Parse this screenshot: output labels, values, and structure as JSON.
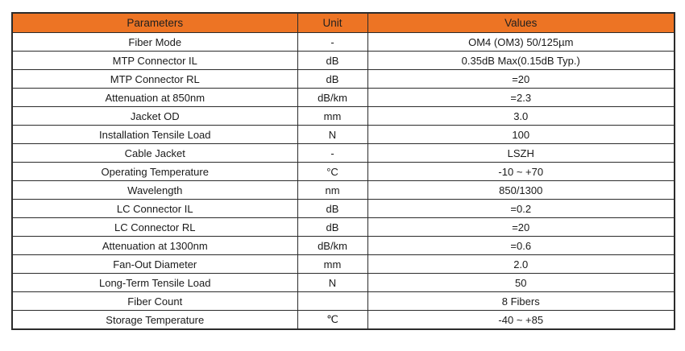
{
  "table": {
    "colors": {
      "header_bg": "#ed7424",
      "header_text": "#1f1f1f",
      "border": "#2b2b2b",
      "row_bg": "#ffffff"
    },
    "headers": [
      {
        "label": "Parameters"
      },
      {
        "label": "Unit"
      },
      {
        "label": "Values"
      }
    ],
    "rows": [
      {
        "parameter": "Fiber Mode",
        "unit": "-",
        "value": "OM4 (OM3) 50/125µm"
      },
      {
        "parameter": "MTP Connector IL",
        "unit": "dB",
        "value": "0.35dB Max(0.15dB Typ.)"
      },
      {
        "parameter": "MTP Connector RL",
        "unit": "dB",
        "value": "=20"
      },
      {
        "parameter": "Attenuation at 850nm",
        "unit": "dB/km",
        "value": "=2.3"
      },
      {
        "parameter": "Jacket OD",
        "unit": "mm",
        "value": "3.0"
      },
      {
        "parameter": "Installation Tensile Load",
        "unit": "N",
        "value": "100"
      },
      {
        "parameter": "Cable Jacket",
        "unit": "-",
        "value": "LSZH"
      },
      {
        "parameter": "Operating Temperature",
        "unit": "°C",
        "value": "-10 ~ +70"
      },
      {
        "parameter": "Wavelength",
        "unit": "nm",
        "value": "850/1300"
      },
      {
        "parameter": "LC Connector IL",
        "unit": "dB",
        "value": "=0.2"
      },
      {
        "parameter": "LC Connector RL",
        "unit": "dB",
        "value": "=20"
      },
      {
        "parameter": "Attenuation at 1300nm",
        "unit": "dB/km",
        "value": "=0.6"
      },
      {
        "parameter": "Fan-Out Diameter",
        "unit": "mm",
        "value": "2.0"
      },
      {
        "parameter": "Long-Term Tensile Load",
        "unit": "N",
        "value": "50"
      },
      {
        "parameter": "Fiber Count",
        "unit": "",
        "value": "8 Fibers"
      },
      {
        "parameter": "Storage Temperature",
        "unit": "℃",
        "value": "-40 ~ +85"
      }
    ]
  }
}
